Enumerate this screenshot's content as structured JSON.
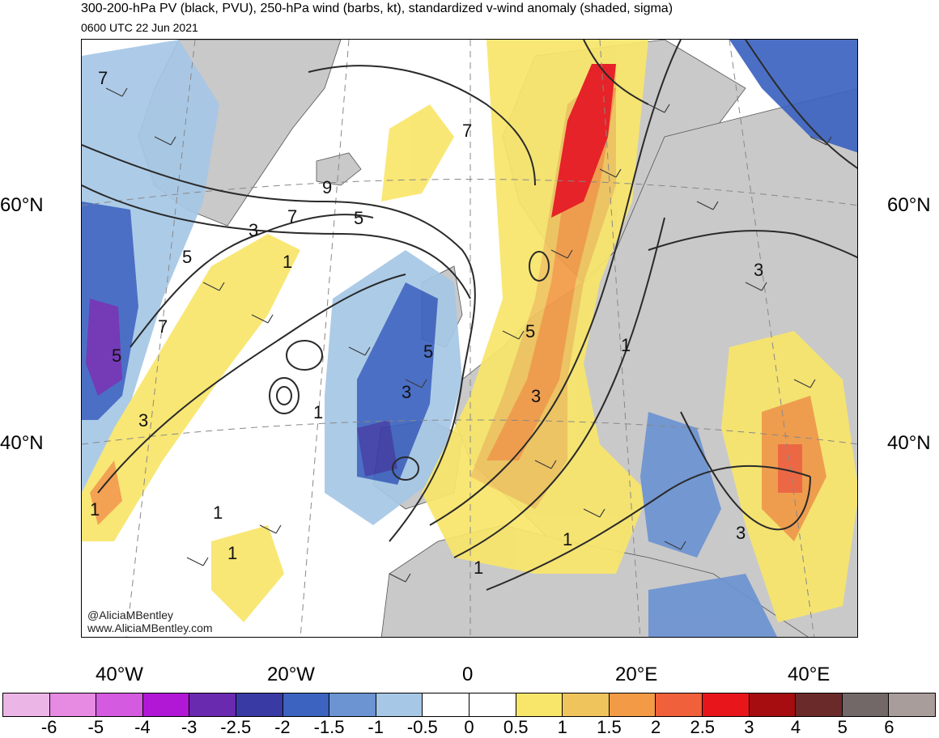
{
  "title": "300-200-hPa PV (black, PVU), 250-hPa wind (barbs, kt), standardized v-wind anomaly (shaded, sigma)",
  "subtitle": "0600 UTC 22 Jun 2021",
  "lat_labels": {
    "north60_left": "60°N",
    "north60_right": "60°N",
    "north40_left": "40°N",
    "north40_right": "40°N"
  },
  "lon_labels": {
    "w40": "40°W",
    "w20": "20°W",
    "zero": "0",
    "e20": "20°E",
    "e40": "40°E"
  },
  "credits": {
    "handle": "@AliciaMBentley",
    "site": "www.AliciaMBentley.com"
  },
  "contour_labels": {
    "c1": "7",
    "c2": "9",
    "c3": "7",
    "c4": "5",
    "c5": "3",
    "c6": "1",
    "c7": "5",
    "c8": "7",
    "c9": "5",
    "c10": "3",
    "c11": "1",
    "c12": "5",
    "c13": "3",
    "c14": "1",
    "c15": "1",
    "c16": "1",
    "c17": "1",
    "c18": "5",
    "c19": "3",
    "c20": "1",
    "c21": "3",
    "c22": "3",
    "c23": "7",
    "c24": "1"
  },
  "colorbar": {
    "labels": [
      "-6",
      "-5",
      "-4",
      "-3",
      "-2.5",
      "-2",
      "-1.5",
      "-1",
      "-0.5",
      "0",
      "0.5",
      "1",
      "1.5",
      "2",
      "2.5",
      "3",
      "4",
      "5",
      "6"
    ],
    "colors": [
      "#ebb5e6",
      "#e68ae2",
      "#d45be0",
      "#b118d6",
      "#6a2ab0",
      "#3a3aa4",
      "#3c63bf",
      "#6c93d2",
      "#a6c7e6",
      "#ffffff",
      "#ffffff",
      "#f8e66a",
      "#f0c45c",
      "#f29a45",
      "#f0603a",
      "#e8161b",
      "#a50d10",
      "#6b2a2a",
      "#736868",
      "#a99d9b"
    ]
  },
  "map_colors": {
    "land": "#c9c9c9",
    "ocean": "#ffffff",
    "contour": "#2a2a2a",
    "barb": "#3a3a3a"
  }
}
